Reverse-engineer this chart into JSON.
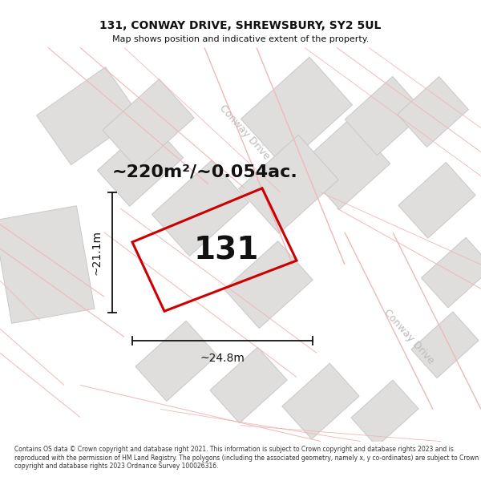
{
  "title_line1": "131, CONWAY DRIVE, SHREWSBURY, SY2 5UL",
  "title_line2": "Map shows position and indicative extent of the property.",
  "area_text": "~220m²/~0.054ac.",
  "number_text": "131",
  "dim_horizontal": "~24.8m",
  "dim_vertical": "~21.1m",
  "footer_text": "Contains OS data © Crown copyright and database right 2021. This information is subject to Crown copyright and database rights 2023 and is reproduced with the permission of HM Land Registry. The polygons (including the associated geometry, namely x, y co-ordinates) are subject to Crown copyright and database rights 2023 Ordnance Survey 100026316.",
  "map_bg": "#f2f1f0",
  "building_fill": "#e0dedd",
  "building_edge": "#c8c8c8",
  "road_fill": "#ffffff",
  "road_line": "#f0b8b8",
  "plot_edge": "#cc0000",
  "text_color": "#111111",
  "street_color": "#bbbbbb",
  "dim_color": "#111111",
  "title_fs": 10,
  "subtitle_fs": 8,
  "area_fs": 16,
  "number_fs": 28,
  "dim_fs": 10,
  "street_fs": 9,
  "footer_fs": 5.5
}
